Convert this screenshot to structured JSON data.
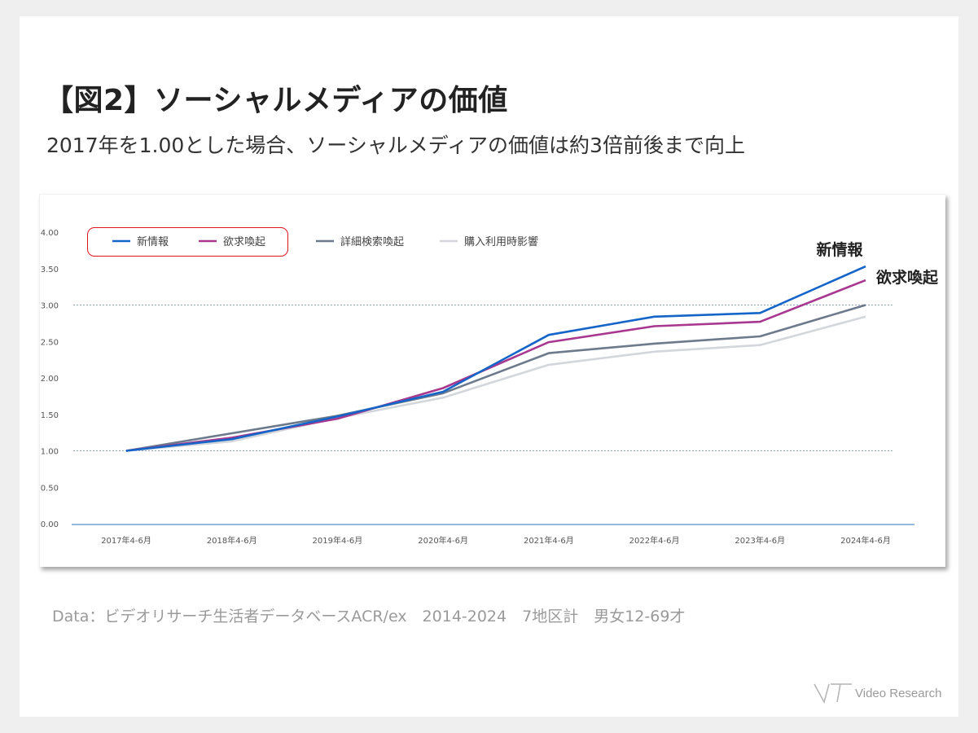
{
  "title": "【図2】ソーシャルメディアの価値",
  "subtitle": "2017年を1.00とした場合、ソーシャルメディアの価値は約3倍前後まで向上",
  "source": "Data：ビデオリサーチ生活者データベースACR/ex　2014-2024　7地区計　男女12-69才",
  "logo": {
    "text": "Video Research",
    "icon": "vr-logo-icon"
  },
  "chart_data": {
    "type": "line",
    "categories": [
      "2017年4-6月",
      "2018年4-6月",
      "2019年4-6月",
      "2020年4-6月",
      "2021年4-6月",
      "2022年4-6月",
      "2023年4-6月",
      "2024年4-6月"
    ],
    "ylim": [
      0,
      4
    ],
    "yticks": [
      "0.00",
      "0.50",
      "1.00",
      "1.50",
      "2.00",
      "2.50",
      "3.00",
      "3.50",
      "4.00"
    ],
    "reference_lines": [
      1.0,
      3.0
    ],
    "grid": false,
    "legend_position": "top-left",
    "legend_highlight": [
      "新情報",
      "欲求喚起"
    ],
    "series": [
      {
        "name": "新情報",
        "color": "#1565c8",
        "values": [
          1.0,
          1.16,
          1.47,
          1.81,
          2.59,
          2.84,
          2.89,
          3.53
        ]
      },
      {
        "name": "欲求喚起",
        "color": "#a8388f",
        "values": [
          1.0,
          1.18,
          1.44,
          1.86,
          2.49,
          2.71,
          2.77,
          3.34
        ]
      },
      {
        "name": "詳細検索喚起",
        "color": "#6c7a8c",
        "values": [
          1.0,
          1.24,
          1.48,
          1.79,
          2.34,
          2.47,
          2.57,
          3.0
        ]
      },
      {
        "name": "購入利用時影響",
        "color": "#d3d6da",
        "values": [
          1.0,
          1.13,
          1.45,
          1.73,
          2.18,
          2.36,
          2.45,
          2.84
        ]
      }
    ],
    "end_labels": [
      "新情報",
      "欲求喚起"
    ]
  }
}
